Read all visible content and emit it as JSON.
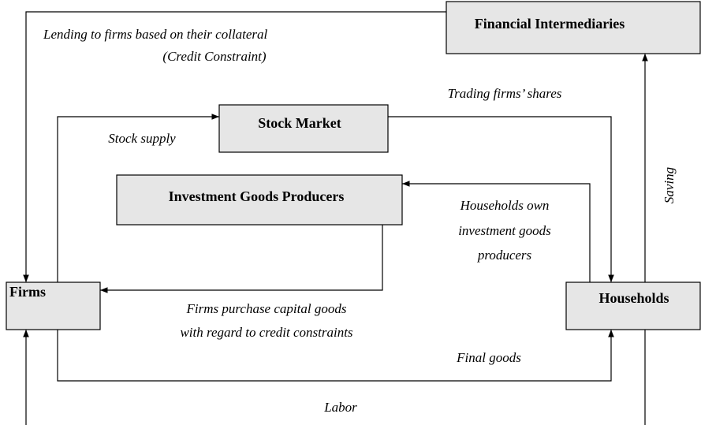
{
  "nodes": [
    {
      "label": "Financial Intermediaries"
    },
    {
      "label": "Stock Market"
    },
    {
      "label": "Investment Goods Producers"
    },
    {
      "label": "Firms"
    },
    {
      "label": "Households"
    }
  ],
  "edge_labels": [
    {
      "lines": [
        "Lending to firms based on their collateral",
        "(Credit Constraint)"
      ]
    },
    {
      "lines": [
        "Trading firms’ shares"
      ]
    },
    {
      "lines": [
        "Stock supply"
      ]
    },
    {
      "lines": [
        "Households own",
        "investment goods",
        "producers"
      ]
    },
    {
      "lines": [
        "Firms purchase capital goods",
        "with regard to credit constraints"
      ]
    },
    {
      "lines": [
        "Final goods"
      ]
    },
    {
      "lines": [
        "Labor"
      ]
    },
    {
      "lines": [
        "Saving"
      ]
    }
  ]
}
